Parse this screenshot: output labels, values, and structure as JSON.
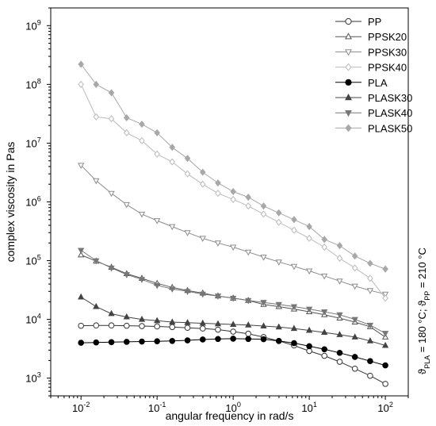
{
  "chart_data": {
    "type": "line",
    "title": "",
    "xlabel": "angular frequency in rad/s",
    "ylabel": "complex viscosity in Pas",
    "xscale": "log",
    "yscale": "log",
    "xlim": [
      0.004,
      200
    ],
    "ylim": [
      500,
      2000000000
    ],
    "x_ticks": [
      0.01,
      0.1,
      1,
      10,
      100
    ],
    "x_tick_labels": [
      {
        "base": "10",
        "exp": "-2"
      },
      {
        "base": "10",
        "exp": "-1"
      },
      {
        "base": "10",
        "exp": "0"
      },
      {
        "base": "10",
        "exp": "1"
      },
      {
        "base": "10",
        "exp": "2"
      }
    ],
    "y_ticks": [
      1000,
      10000,
      100000,
      1000000,
      10000000,
      100000000,
      1000000000
    ],
    "y_tick_labels": [
      {
        "base": "10",
        "exp": "3"
      },
      {
        "base": "10",
        "exp": "4"
      },
      {
        "base": "10",
        "exp": "5"
      },
      {
        "base": "10",
        "exp": "6"
      },
      {
        "base": "10",
        "exp": "7"
      },
      {
        "base": "10",
        "exp": "8"
      },
      {
        "base": "10",
        "exp": "9"
      }
    ],
    "grid": false,
    "legend_position": "top-right",
    "annotation": {
      "parts": [
        {
          "t": "ϑ",
          "sub": false
        },
        {
          "t": "PLA",
          "sub": true
        },
        {
          "t": " = 180 °C; ϑ",
          "sub": false
        },
        {
          "t": "PP",
          "sub": true
        },
        {
          "t": " = 210 °C",
          "sub": false
        }
      ]
    },
    "x": [
      0.01,
      0.0158,
      0.0251,
      0.0398,
      0.0631,
      0.1,
      0.158,
      0.251,
      0.398,
      0.631,
      1,
      1.58,
      2.51,
      3.98,
      6.31,
      10,
      15.8,
      25.1,
      39.8,
      63.1,
      100
    ],
    "series": [
      {
        "name": "PP",
        "marker": "circle",
        "fill": "#ffffff",
        "stroke": "#333333",
        "line": "#333333",
        "values": [
          7800,
          7900,
          7900,
          7800,
          7700,
          7600,
          7400,
          7200,
          7000,
          6700,
          6200,
          5700,
          5000,
          4300,
          3600,
          2900,
          2400,
          1900,
          1450,
          1100,
          800
        ]
      },
      {
        "name": "PPSK20",
        "marker": "triangle-up",
        "fill": "#ffffff",
        "stroke": "#555555",
        "line": "#555555",
        "values": [
          125000,
          98000,
          77000,
          60000,
          50000,
          41000,
          35000,
          31000,
          28000,
          25000,
          23000,
          21000,
          18000,
          16500,
          15000,
          13500,
          12000,
          10500,
          9000,
          7500,
          5000
        ]
      },
      {
        "name": "PPSK30",
        "marker": "triangle-down",
        "fill": "#ffffff",
        "stroke": "#8c8c8c",
        "line": "#8c8c8c",
        "values": [
          4200000,
          2300000,
          1400000,
          900000,
          620000,
          480000,
          380000,
          300000,
          240000,
          200000,
          170000,
          140000,
          115000,
          95000,
          80000,
          67000,
          55000,
          45000,
          37000,
          31000,
          27000
        ]
      },
      {
        "name": "PPSK40",
        "marker": "diamond",
        "fill": "#ffffff",
        "stroke": "#bbbbbb",
        "line": "#bbbbbb",
        "values": [
          100000000,
          28000000,
          26000000,
          15000000,
          11000000,
          6500000,
          4800000,
          3000000,
          2000000,
          1400000,
          1100000,
          850000,
          620000,
          450000,
          330000,
          240000,
          170000,
          110000,
          75000,
          50000,
          23000
        ]
      },
      {
        "name": "PLA",
        "marker": "circle",
        "fill": "#000000",
        "stroke": "#000000",
        "line": "#000000",
        "values": [
          4000,
          4050,
          4100,
          4150,
          4200,
          4250,
          4300,
          4400,
          4550,
          4650,
          4700,
          4650,
          4600,
          4300,
          3950,
          3500,
          3100,
          2700,
          2300,
          1950,
          1650
        ]
      },
      {
        "name": "PLASK30",
        "marker": "triangle-up",
        "fill": "#444444",
        "stroke": "#444444",
        "line": "#444444",
        "values": [
          24000,
          16500,
          12500,
          11000,
          10000,
          9500,
          9000,
          8800,
          8600,
          8400,
          8200,
          8000,
          7700,
          7400,
          7000,
          6500,
          6000,
          5500,
          5000,
          4300,
          3600
        ]
      },
      {
        "name": "PLASK40",
        "marker": "triangle-down",
        "fill": "#777777",
        "stroke": "#777777",
        "line": "#777777",
        "values": [
          150000,
          100000,
          75000,
          58000,
          48000,
          38000,
          33000,
          30000,
          27000,
          25000,
          23000,
          21000,
          19500,
          18000,
          16500,
          15000,
          13500,
          12000,
          10000,
          8000,
          5800
        ]
      },
      {
        "name": "PLASK50",
        "marker": "diamond",
        "fill": "#a8a8a8",
        "stroke": "#a8a8a8",
        "line": "#a8a8a8",
        "values": [
          220000000,
          100000000,
          72000000,
          27000000,
          21000000,
          15000000,
          8500000,
          5500000,
          3200000,
          2100000,
          1500000,
          1200000,
          850000,
          650000,
          500000,
          380000,
          230000,
          180000,
          120000,
          90000,
          72000
        ]
      }
    ]
  }
}
